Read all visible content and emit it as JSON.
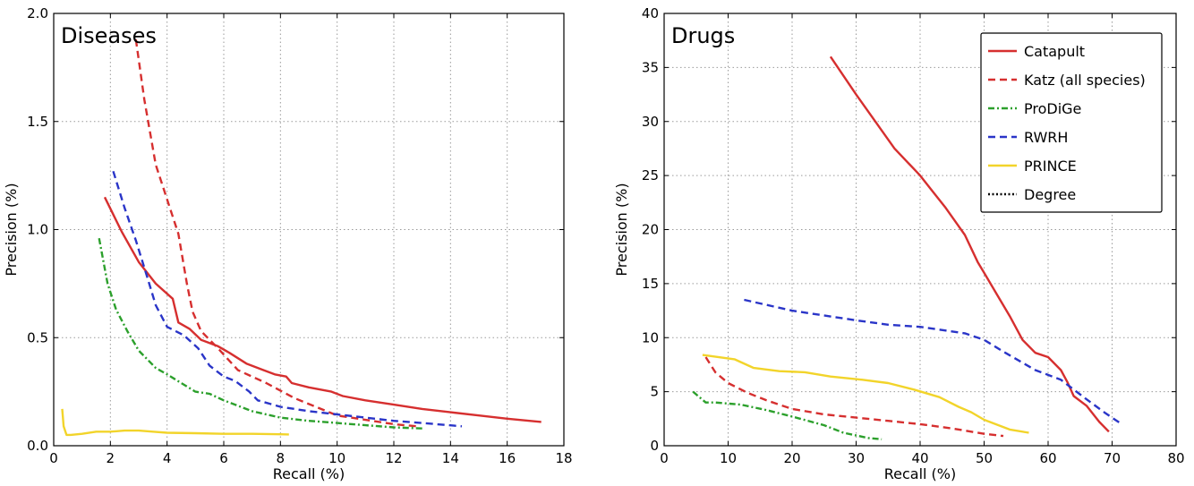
{
  "series_styles": [
    {
      "name": "Catapult",
      "color": "#d62f2f",
      "dash": "solid"
    },
    {
      "name": "Katz (all species)",
      "color": "#d62f2f",
      "dash": "dashed"
    },
    {
      "name": "ProDiGe",
      "color": "#2ca02c",
      "dash": "dashdot"
    },
    {
      "name": "RWRH",
      "color": "#2a35c8",
      "dash": "dashed"
    },
    {
      "name": "PRINCE",
      "color": "#f2d42a",
      "dash": "solid"
    },
    {
      "name": "Degree",
      "color": "#000000",
      "dash": "dotted"
    }
  ],
  "legend": {
    "entries": [
      "Catapult",
      "Katz (all species)",
      "ProDiGe",
      "RWRH",
      "PRINCE",
      "Degree"
    ],
    "location": "upper right of Drugs panel"
  },
  "chart_data": [
    {
      "type": "line",
      "title": "Diseases",
      "xlabel": "Recall (%)",
      "ylabel": "Precision (%)",
      "xlim": [
        0,
        18
      ],
      "ylim": [
        0,
        2.0
      ],
      "xticks": [
        "0",
        "2",
        "4",
        "6",
        "8",
        "10",
        "12",
        "14",
        "16",
        "18"
      ],
      "yticks": [
        "0.0",
        "0.5",
        "1.0",
        "1.5",
        "2.0"
      ],
      "grid": true,
      "series": [
        {
          "name": "Catapult",
          "x": [
            1.8,
            2.4,
            3.0,
            3.6,
            4.2,
            4.4,
            4.8,
            5.2,
            5.8,
            6.2,
            6.8,
            7.4,
            7.8,
            8.2,
            8.4,
            9.0,
            9.8,
            10.2,
            11.0,
            12.0,
            13.0,
            14.0,
            15.0,
            16.0,
            17.2
          ],
          "y": [
            1.15,
            0.99,
            0.85,
            0.75,
            0.68,
            0.57,
            0.54,
            0.49,
            0.46,
            0.43,
            0.38,
            0.35,
            0.33,
            0.32,
            0.29,
            0.27,
            0.25,
            0.23,
            0.21,
            0.19,
            0.17,
            0.155,
            0.14,
            0.125,
            0.11
          ]
        },
        {
          "name": "Katz (all species)",
          "x": [
            2.9,
            3.2,
            3.6,
            3.9,
            4.4,
            4.7,
            4.9,
            5.2,
            5.8,
            6.5,
            7.5,
            8.5,
            10.0,
            12.0,
            12.8
          ],
          "y": [
            1.88,
            1.6,
            1.3,
            1.18,
            0.98,
            0.75,
            0.62,
            0.53,
            0.45,
            0.35,
            0.29,
            0.22,
            0.14,
            0.1,
            0.09
          ]
        },
        {
          "name": "ProDiGe",
          "x": [
            1.6,
            1.9,
            2.2,
            2.6,
            3.0,
            3.6,
            4.0,
            5.0,
            5.5,
            6.0,
            7.0,
            8.0,
            9.0,
            10.0,
            11.0,
            12.0,
            13.0
          ],
          "y": [
            0.96,
            0.75,
            0.63,
            0.53,
            0.44,
            0.36,
            0.33,
            0.25,
            0.24,
            0.21,
            0.16,
            0.13,
            0.115,
            0.105,
            0.095,
            0.085,
            0.08
          ]
        },
        {
          "name": "RWRH",
          "x": [
            2.1,
            2.5,
            2.9,
            3.3,
            3.6,
            4.0,
            4.6,
            5.1,
            5.5,
            6.0,
            6.4,
            6.9,
            7.2,
            8.0,
            9.0,
            10.0,
            11.0,
            12.0,
            13.0,
            14.4
          ],
          "y": [
            1.27,
            1.1,
            0.95,
            0.78,
            0.65,
            0.55,
            0.51,
            0.45,
            0.37,
            0.32,
            0.3,
            0.25,
            0.21,
            0.18,
            0.16,
            0.145,
            0.13,
            0.115,
            0.105,
            0.09
          ]
        },
        {
          "name": "PRINCE",
          "x": [
            0.3,
            0.35,
            0.45,
            0.6,
            1.0,
            1.5,
            2.0,
            2.5,
            3.0,
            3.5,
            4.0,
            5.0,
            6.0,
            7.0,
            8.0,
            8.3
          ],
          "y": [
            0.17,
            0.09,
            0.05,
            0.05,
            0.055,
            0.065,
            0.065,
            0.07,
            0.07,
            0.065,
            0.06,
            0.058,
            0.055,
            0.055,
            0.053,
            0.052
          ]
        }
      ]
    },
    {
      "type": "line",
      "title": "Drugs",
      "xlabel": "Recall (%)",
      "ylabel": "Precision (%)",
      "xlim": [
        0,
        80
      ],
      "ylim": [
        0,
        40
      ],
      "xticks": [
        "0",
        "10",
        "20",
        "30",
        "40",
        "50",
        "60",
        "70",
        "80"
      ],
      "yticks": [
        "0",
        "5",
        "10",
        "15",
        "20",
        "25",
        "30",
        "35",
        "40"
      ],
      "grid": true,
      "series": [
        {
          "name": "Catapult",
          "x": [
            26,
            30,
            33,
            36,
            40,
            42,
            44,
            47,
            49,
            50,
            52,
            54,
            56,
            58,
            60,
            62,
            63,
            64,
            66,
            68,
            69.5
          ],
          "y": [
            36,
            32.5,
            30,
            27.5,
            25,
            23.5,
            22,
            19.5,
            17,
            16,
            14,
            12,
            9.8,
            8.6,
            8.2,
            7,
            5.9,
            4.6,
            3.7,
            2.2,
            1.3
          ]
        },
        {
          "name": "Katz (all species)",
          "x": [
            6.5,
            8,
            10,
            13,
            16,
            20,
            25,
            30,
            35,
            40,
            45,
            50,
            53
          ],
          "y": [
            8.2,
            6.8,
            5.8,
            4.9,
            4.2,
            3.4,
            2.9,
            2.6,
            2.3,
            2.0,
            1.6,
            1.1,
            0.9
          ]
        },
        {
          "name": "ProDiGe",
          "x": [
            4.5,
            6.5,
            8,
            12,
            16,
            20,
            25,
            28,
            32,
            34
          ],
          "y": [
            5.0,
            4.0,
            4.0,
            3.8,
            3.3,
            2.7,
            1.9,
            1.2,
            0.7,
            0.6
          ]
        },
        {
          "name": "RWRH",
          "x": [
            12.5,
            20,
            30,
            35,
            40,
            47,
            50,
            53,
            58,
            62,
            66,
            69,
            71.5
          ],
          "y": [
            13.5,
            12.5,
            11.6,
            11.2,
            11.0,
            10.4,
            9.8,
            8.7,
            7.0,
            6.1,
            4.3,
            3.0,
            2.0
          ]
        },
        {
          "name": "PRINCE",
          "x": [
            6,
            11,
            14,
            18,
            22,
            26,
            31,
            35,
            39,
            43,
            46,
            48,
            50,
            54,
            57
          ],
          "y": [
            8.4,
            8.0,
            7.2,
            6.9,
            6.8,
            6.4,
            6.1,
            5.8,
            5.2,
            4.5,
            3.6,
            3.1,
            2.4,
            1.5,
            1.2
          ]
        }
      ]
    }
  ]
}
